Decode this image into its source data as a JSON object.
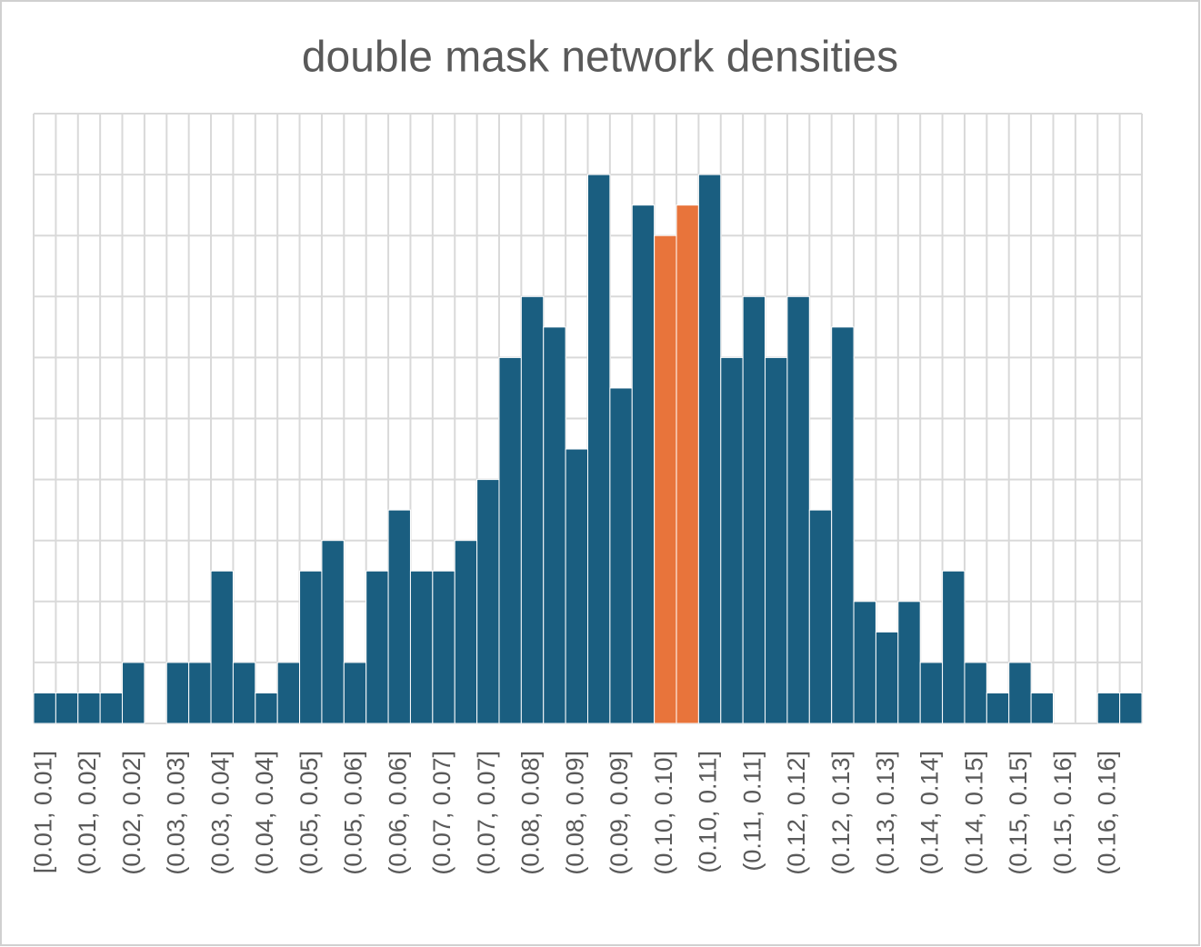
{
  "chart_data": {
    "type": "histogram",
    "title": "double mask network densities",
    "categories": [
      "[0.01, 0.01]",
      null,
      "(0.01, 0.02]",
      null,
      "(0.02, 0.02]",
      null,
      "(0.03, 0.03]",
      null,
      "(0.03, 0.04]",
      null,
      "(0.04, 0.04]",
      null,
      "(0.05, 0.05]",
      null,
      "(0.05, 0.06]",
      null,
      "(0.06, 0.06]",
      null,
      "(0.07, 0.07]",
      null,
      "(0.07, 0.07]",
      null,
      "(0.08, 0.08]",
      null,
      "(0.08, 0.09]",
      null,
      "(0.09, 0.09]",
      null,
      "(0.10, 0.10]",
      null,
      "(0.10, 0.11]",
      null,
      "(0.11, 0.11]",
      null,
      "(0.12, 0.12]",
      null,
      "(0.12, 0.13]",
      null,
      "(0.13, 0.13]",
      null,
      "(0.14, 0.14]",
      null,
      "(0.14, 0.15]",
      null,
      "(0.15, 0.15]",
      null,
      "(0.15, 0.16]",
      null,
      "(0.16, 0.16]",
      null
    ],
    "values": [
      1,
      1,
      1,
      1,
      2,
      0,
      2,
      2,
      5,
      2,
      1,
      2,
      5,
      6,
      2,
      5,
      7,
      5,
      5,
      6,
      8,
      12,
      14,
      13,
      9,
      18,
      11,
      17,
      16,
      17,
      18,
      12,
      14,
      12,
      14,
      7,
      13,
      4,
      3,
      4,
      2,
      5,
      2,
      1,
      2,
      1,
      0,
      0,
      1,
      1
    ],
    "color": "#1a5e80",
    "highlight_color": "#e8743b",
    "highlight": [
      28,
      29
    ],
    "ylim": [
      0,
      20
    ],
    "yticks": [
      0,
      2,
      4,
      6,
      8,
      10,
      12,
      14,
      16,
      18,
      20
    ],
    "grid": true
  }
}
